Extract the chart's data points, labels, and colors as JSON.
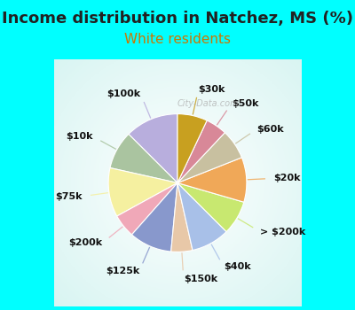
{
  "title": "Income distribution in Natchez, MS (%)",
  "subtitle": "White residents",
  "title_fontsize": 13,
  "subtitle_fontsize": 11,
  "title_color": "#222222",
  "subtitle_color": "#cc7700",
  "background_color": "#00FFFF",
  "chart_bg": "#e0f2e9",
  "watermark": "City-Data.com",
  "labels": [
    "$100k",
    "$10k",
    "$75k",
    "$200k",
    "$125k",
    "$150k",
    "$40k",
    "> $200k",
    "$20k",
    "$60k",
    "$50k",
    "$30k"
  ],
  "sizes": [
    12.5,
    9.0,
    11.5,
    5.5,
    10.0,
    5.0,
    9.0,
    8.0,
    10.5,
    7.0,
    5.0,
    7.0
  ],
  "colors": [
    "#b8aedd",
    "#aac4a0",
    "#f5f0a0",
    "#f0a8b8",
    "#8898cc",
    "#e8c8a8",
    "#a8c0e8",
    "#c8e870",
    "#f0a858",
    "#c8c0a0",
    "#d88898",
    "#c8a020"
  ],
  "line_colors": [
    "#b8aedd",
    "#aac4a0",
    "#f5f0a0",
    "#f0a8b8",
    "#8898cc",
    "#e8c8a8",
    "#a8c0e8",
    "#c8e870",
    "#f0a858",
    "#c8c0a0",
    "#d88898",
    "#c8a020"
  ],
  "startangle": 90,
  "label_fontsize": 8,
  "label_color": "#111111",
  "label_fontweight": "bold"
}
